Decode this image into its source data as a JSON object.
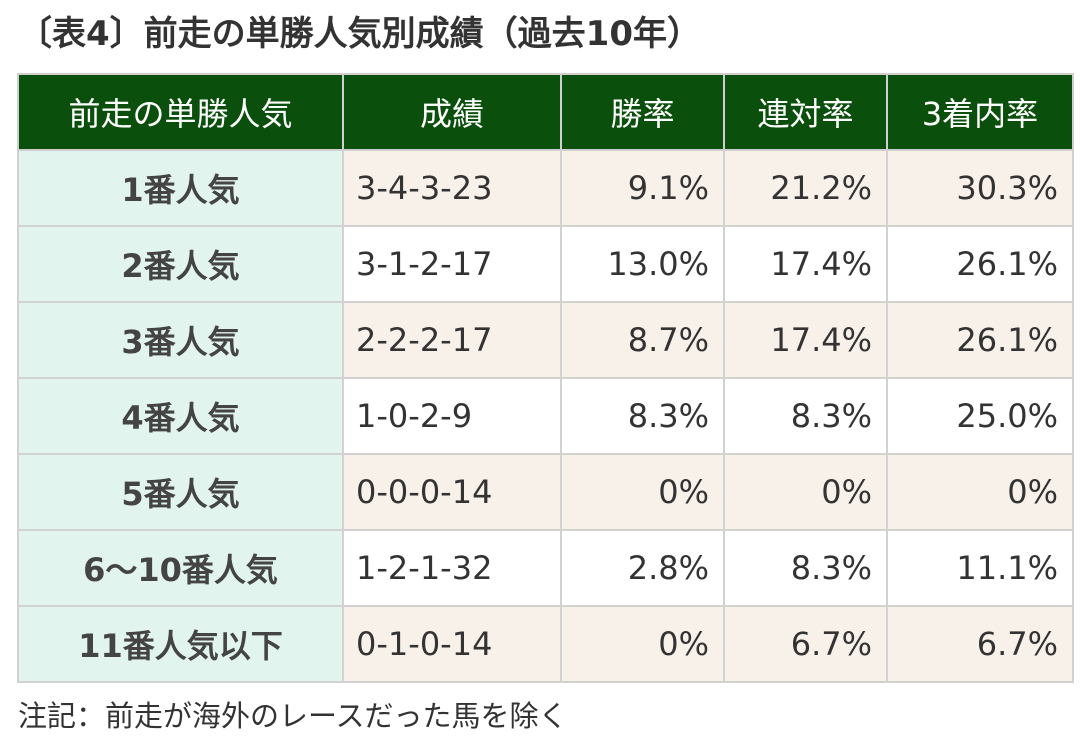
{
  "title": "〔表4〕前走の単勝人気別成績（過去10年）",
  "table": {
    "headers": [
      "前走の単勝人気",
      "成績",
      "勝率",
      "連対率",
      "3着内率"
    ],
    "rows": [
      {
        "label": "1番人気",
        "record": "3-4-3-23",
        "win": "9.1%",
        "quinella": "21.2%",
        "top3": "30.3%"
      },
      {
        "label": "2番人気",
        "record": "3-1-2-17",
        "win": "13.0%",
        "quinella": "17.4%",
        "top3": "26.1%"
      },
      {
        "label": "3番人気",
        "record": "2-2-2-17",
        "win": "8.7%",
        "quinella": "17.4%",
        "top3": "26.1%"
      },
      {
        "label": "4番人気",
        "record": "1-0-2-9",
        "win": "8.3%",
        "quinella": "8.3%",
        "top3": "25.0%"
      },
      {
        "label": "5番人気",
        "record": "0-0-0-14",
        "win": "0%",
        "quinella": "0%",
        "top3": "0%"
      },
      {
        "label": "6〜10番人気",
        "record": "1-2-1-32",
        "win": "2.8%",
        "quinella": "8.3%",
        "top3": "11.1%"
      },
      {
        "label": "11番人気以下",
        "record": "0-1-0-14",
        "win": "0%",
        "quinella": "6.7%",
        "top3": "6.7%"
      }
    ]
  },
  "note": "注記：前走が海外のレースだった馬を除く",
  "colors": {
    "header_bg": "#0b4f0c",
    "label_bg": "#e2f4ee",
    "stripe_bg": "#f8f1ea",
    "border": "#d2d2d2"
  }
}
